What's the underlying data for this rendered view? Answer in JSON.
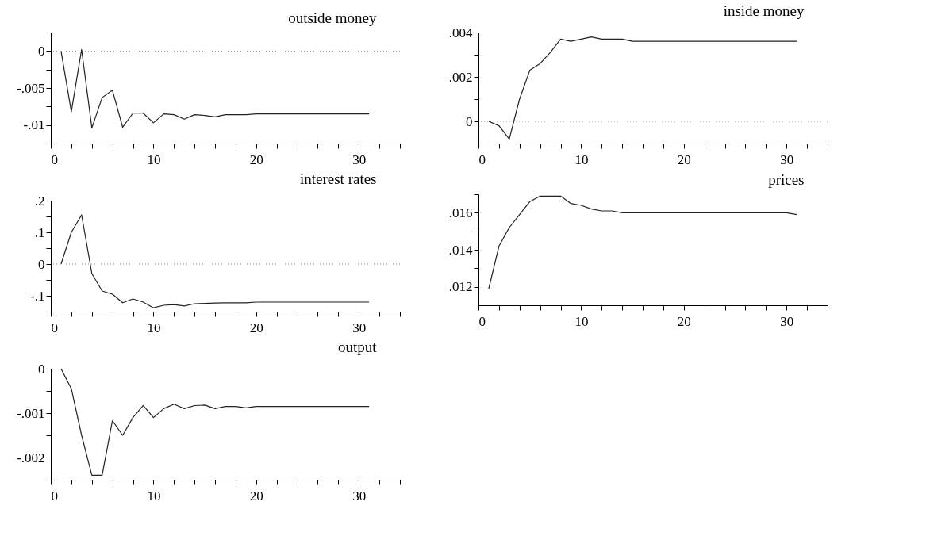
{
  "chart_data": [
    {
      "type": "line",
      "title": "outside money",
      "x": [
        1,
        2,
        3,
        4,
        5,
        6,
        7,
        8,
        9,
        10,
        11,
        12,
        13,
        14,
        15,
        16,
        17,
        18,
        19,
        20,
        21,
        22,
        23,
        24,
        25,
        26,
        27,
        28,
        29,
        30,
        31
      ],
      "series": [
        {
          "color": "#222222",
          "values": [
            0,
            -0.0082,
            0.0002,
            -0.0104,
            -0.0063,
            -0.0053,
            -0.0103,
            -0.0084,
            -0.0084,
            -0.0097,
            -0.0085,
            -0.0086,
            -0.0092,
            -0.0086,
            -0.0087,
            -0.0089,
            -0.0086,
            -0.0086,
            -0.0086,
            -0.0085,
            -0.0085,
            -0.0085,
            -0.0085,
            -0.0085,
            -0.0085,
            -0.0085,
            -0.0085,
            -0.0085,
            -0.0085,
            -0.0085,
            -0.0085
          ]
        }
      ],
      "xlim": [
        0,
        34
      ],
      "ylim": [
        -0.0125,
        0.0025
      ],
      "xticks": [
        0,
        {
          "value": 2,
          "label": null
        },
        {
          "value": 4,
          "label": null
        },
        {
          "value": 6,
          "label": null
        },
        {
          "value": 8,
          "label": null
        },
        10,
        {
          "value": 12,
          "label": null
        },
        {
          "value": 14,
          "label": null
        },
        {
          "value": 16,
          "label": null
        },
        {
          "value": 18,
          "label": null
        },
        20,
        {
          "value": 22,
          "label": null
        },
        {
          "value": 24,
          "label": null
        },
        {
          "value": 26,
          "label": null
        },
        {
          "value": 28,
          "label": null
        },
        30,
        {
          "value": 32,
          "label": null
        },
        {
          "value": 34,
          "label": null
        }
      ],
      "yticks": [
        {
          "value": -0.0125,
          "label": null
        },
        {
          "value": -0.01,
          "label": "-.01"
        },
        {
          "value": -0.0075,
          "label": null
        },
        {
          "value": -0.005,
          "label": "-.005"
        },
        {
          "value": -0.0025,
          "label": null
        },
        0,
        {
          "value": 0.0025,
          "label": null
        }
      ],
      "ref_lines": [
        {
          "axis": "y",
          "value": 0,
          "color": "#888888",
          "line_style": "dotted"
        }
      ],
      "grid": false,
      "marker": "none",
      "line_style": "solid"
    },
    {
      "type": "line",
      "title": "inside money",
      "x": [
        1,
        2,
        3,
        4,
        5,
        6,
        7,
        8,
        9,
        10,
        11,
        12,
        13,
        14,
        15,
        16,
        17,
        18,
        19,
        20,
        21,
        22,
        23,
        24,
        25,
        26,
        27,
        28,
        29,
        30,
        31
      ],
      "series": [
        {
          "color": "#222222",
          "values": [
            0,
            -0.0002,
            -0.0008,
            0.001,
            0.0023,
            0.0026,
            0.0031,
            0.0037,
            0.0036,
            0.0037,
            0.0038,
            0.0037,
            0.0037,
            0.0037,
            0.0036,
            0.0036,
            0.0036,
            0.0036,
            0.0036,
            0.0036,
            0.0036,
            0.0036,
            0.0036,
            0.0036,
            0.0036,
            0.0036,
            0.0036,
            0.0036,
            0.0036,
            0.0036,
            0.0036
          ]
        }
      ],
      "xlim": [
        0,
        34
      ],
      "ylim": [
        -0.001,
        0.004
      ],
      "xticks": [
        0,
        {
          "value": 2,
          "label": null
        },
        {
          "value": 4,
          "label": null
        },
        {
          "value": 6,
          "label": null
        },
        {
          "value": 8,
          "label": null
        },
        10,
        {
          "value": 12,
          "label": null
        },
        {
          "value": 14,
          "label": null
        },
        {
          "value": 16,
          "label": null
        },
        {
          "value": 18,
          "label": null
        },
        20,
        {
          "value": 22,
          "label": null
        },
        {
          "value": 24,
          "label": null
        },
        {
          "value": 26,
          "label": null
        },
        {
          "value": 28,
          "label": null
        },
        30,
        {
          "value": 32,
          "label": null
        },
        {
          "value": 34,
          "label": null
        }
      ],
      "yticks": [
        0,
        {
          "value": 0.001,
          "label": null
        },
        {
          "value": 0.002,
          "label": ".002"
        },
        {
          "value": 0.003,
          "label": null
        },
        {
          "value": 0.004,
          "label": ".004"
        }
      ],
      "ref_lines": [
        {
          "axis": "y",
          "value": 0,
          "color": "#888888",
          "line_style": "dotted"
        }
      ],
      "grid": false,
      "marker": "none",
      "line_style": "solid"
    },
    {
      "type": "line",
      "title": "interest rates",
      "x": [
        1,
        2,
        3,
        4,
        5,
        6,
        7,
        8,
        9,
        10,
        11,
        12,
        13,
        14,
        15,
        16,
        17,
        18,
        19,
        20,
        21,
        22,
        23,
        24,
        25,
        26,
        27,
        28,
        29,
        30,
        31
      ],
      "series": [
        {
          "color": "#222222",
          "values": [
            0,
            0.1,
            0.155,
            -0.03,
            -0.085,
            -0.095,
            -0.122,
            -0.11,
            -0.12,
            -0.138,
            -0.13,
            -0.128,
            -0.132,
            -0.125,
            -0.124,
            -0.123,
            -0.122,
            -0.122,
            -0.122,
            -0.12,
            -0.12,
            -0.12,
            -0.12,
            -0.12,
            -0.12,
            -0.12,
            -0.12,
            -0.12,
            -0.12,
            -0.12,
            -0.12
          ]
        }
      ],
      "xlim": [
        0,
        34
      ],
      "ylim": [
        -0.15,
        0.2
      ],
      "xticks": [
        0,
        {
          "value": 2,
          "label": null
        },
        {
          "value": 4,
          "label": null
        },
        {
          "value": 6,
          "label": null
        },
        {
          "value": 8,
          "label": null
        },
        10,
        {
          "value": 12,
          "label": null
        },
        {
          "value": 14,
          "label": null
        },
        {
          "value": 16,
          "label": null
        },
        {
          "value": 18,
          "label": null
        },
        20,
        {
          "value": 22,
          "label": null
        },
        {
          "value": 24,
          "label": null
        },
        {
          "value": 26,
          "label": null
        },
        {
          "value": 28,
          "label": null
        },
        30,
        {
          "value": 32,
          "label": null
        },
        {
          "value": 34,
          "label": null
        }
      ],
      "yticks": [
        {
          "value": -0.15,
          "label": null
        },
        {
          "value": -0.1,
          "label": "-.1"
        },
        {
          "value": -0.05,
          "label": null
        },
        0,
        {
          "value": 0.05,
          "label": null
        },
        {
          "value": 0.1,
          "label": ".1"
        },
        {
          "value": 0.15,
          "label": null
        },
        {
          "value": 0.2,
          "label": ".2"
        }
      ],
      "ref_lines": [
        {
          "axis": "y",
          "value": 0,
          "color": "#888888",
          "line_style": "dotted"
        }
      ],
      "grid": false,
      "marker": "none",
      "line_style": "solid"
    },
    {
      "type": "line",
      "title": "prices",
      "x": [
        1,
        2,
        3,
        4,
        5,
        6,
        7,
        8,
        9,
        10,
        11,
        12,
        13,
        14,
        15,
        16,
        17,
        18,
        19,
        20,
        21,
        22,
        23,
        24,
        25,
        26,
        27,
        28,
        29,
        30,
        31
      ],
      "series": [
        {
          "color": "#222222",
          "values": [
            0.0119,
            0.0142,
            0.0152,
            0.0159,
            0.0166,
            0.0169,
            0.0169,
            0.0169,
            0.0165,
            0.0164,
            0.0162,
            0.0161,
            0.0161,
            0.016,
            0.016,
            0.016,
            0.016,
            0.016,
            0.016,
            0.016,
            0.016,
            0.016,
            0.016,
            0.016,
            0.016,
            0.016,
            0.016,
            0.016,
            0.016,
            0.016,
            0.0159
          ]
        }
      ],
      "xlim": [
        0,
        34
      ],
      "ylim": [
        0.011,
        0.017
      ],
      "xticks": [
        0,
        {
          "value": 2,
          "label": null
        },
        {
          "value": 4,
          "label": null
        },
        {
          "value": 6,
          "label": null
        },
        {
          "value": 8,
          "label": null
        },
        10,
        {
          "value": 12,
          "label": null
        },
        {
          "value": 14,
          "label": null
        },
        {
          "value": 16,
          "label": null
        },
        {
          "value": 18,
          "label": null
        },
        20,
        {
          "value": 22,
          "label": null
        },
        {
          "value": 24,
          "label": null
        },
        {
          "value": 26,
          "label": null
        },
        {
          "value": 28,
          "label": null
        },
        30,
        {
          "value": 32,
          "label": null
        },
        {
          "value": 34,
          "label": null
        }
      ],
      "yticks": [
        {
          "value": 0.012,
          "label": ".012"
        },
        {
          "value": 0.013,
          "label": null
        },
        {
          "value": 0.014,
          "label": ".014"
        },
        {
          "value": 0.015,
          "label": null
        },
        {
          "value": 0.016,
          "label": ".016"
        },
        {
          "value": 0.017,
          "label": null
        }
      ],
      "grid": false,
      "marker": "none",
      "line_style": "solid"
    },
    {
      "type": "line",
      "title": "output",
      "x": [
        1,
        2,
        3,
        4,
        5,
        6,
        7,
        8,
        9,
        10,
        11,
        12,
        13,
        14,
        15,
        16,
        17,
        18,
        19,
        20,
        21,
        22,
        23,
        24,
        25,
        26,
        27,
        28,
        29,
        30,
        31
      ],
      "series": [
        {
          "color": "#222222",
          "values": [
            0,
            -0.00045,
            -0.0015,
            -0.0024,
            -0.0024,
            -0.00117,
            -0.0015,
            -0.0011,
            -0.00083,
            -0.0011,
            -0.0009,
            -0.0008,
            -0.0009,
            -0.00083,
            -0.00082,
            -0.0009,
            -0.00085,
            -0.00085,
            -0.00088,
            -0.00085,
            -0.00085,
            -0.00085,
            -0.00085,
            -0.00085,
            -0.00085,
            -0.00085,
            -0.00085,
            -0.00085,
            -0.00085,
            -0.00085,
            -0.00085
          ]
        }
      ],
      "xlim": [
        0,
        34
      ],
      "ylim": [
        -0.0025,
        0
      ],
      "xticks": [
        0,
        {
          "value": 2,
          "label": null
        },
        {
          "value": 4,
          "label": null
        },
        {
          "value": 6,
          "label": null
        },
        {
          "value": 8,
          "label": null
        },
        10,
        {
          "value": 12,
          "label": null
        },
        {
          "value": 14,
          "label": null
        },
        {
          "value": 16,
          "label": null
        },
        {
          "value": 18,
          "label": null
        },
        20,
        {
          "value": 22,
          "label": null
        },
        {
          "value": 24,
          "label": null
        },
        {
          "value": 26,
          "label": null
        },
        {
          "value": 28,
          "label": null
        },
        30,
        {
          "value": 32,
          "label": null
        },
        {
          "value": 34,
          "label": null
        }
      ],
      "yticks": [
        {
          "value": -0.0025,
          "label": null
        },
        {
          "value": -0.002,
          "label": "-.002"
        },
        {
          "value": -0.0015,
          "label": null
        },
        {
          "value": -0.001,
          "label": "-.001"
        },
        {
          "value": -0.0005,
          "label": null
        },
        0
      ],
      "grid": false,
      "marker": "none",
      "line_style": "solid"
    }
  ]
}
